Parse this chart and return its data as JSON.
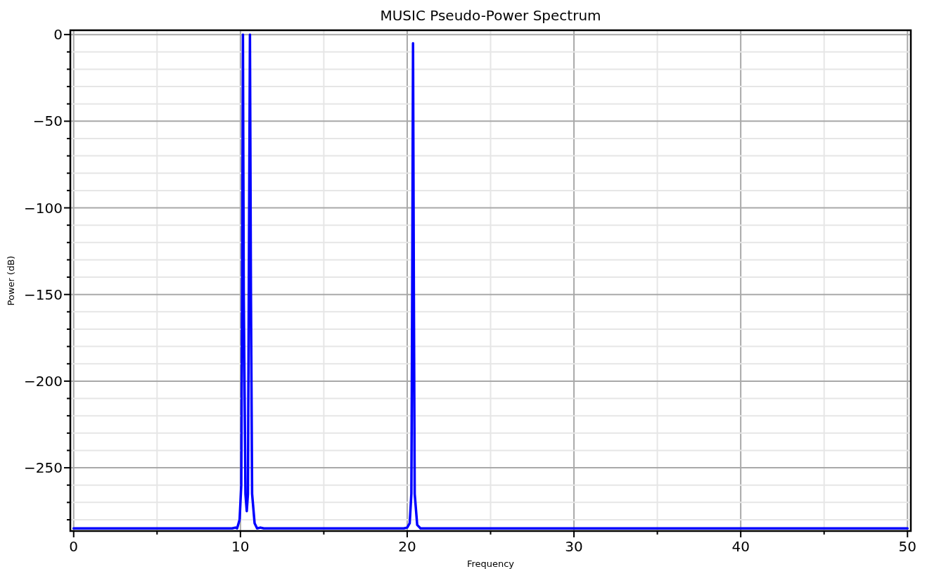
{
  "chart_data": {
    "type": "line",
    "title": "MUSIC Pseudo-Power Spectrum",
    "xlabel": "Frequency",
    "ylabel": "Power (dB)",
    "x": [
      0,
      9.5,
      9.7,
      9.8,
      9.95,
      10.05,
      10.1,
      10.15,
      10.2,
      10.3,
      10.38,
      10.45,
      10.5,
      10.57,
      10.63,
      10.7,
      10.85,
      11.0,
      11.2,
      11.4,
      19.8,
      20.0,
      20.15,
      20.25,
      20.3,
      20.35,
      20.4,
      20.45,
      20.6,
      20.8,
      50
    ],
    "series": [
      {
        "color": "#0000ff",
        "values": [
          -285,
          -285,
          -284.5,
          -285,
          -280,
          -260,
          -150,
          0,
          -150,
          -265,
          -275,
          -265,
          -150,
          0,
          -150,
          -265,
          -282,
          -285,
          -284.5,
          -285,
          -285,
          -284.5,
          -282,
          -265,
          -150,
          -5,
          -150,
          -265,
          -283,
          -285,
          -285
        ]
      }
    ],
    "xlim": [
      -0.2,
      50.2
    ],
    "ylim": [
      -286.5,
      2.5
    ],
    "xticks": [
      0,
      {
        "value": 5,
        "label": null
      },
      10,
      {
        "value": 15,
        "label": null
      },
      20,
      {
        "value": 25,
        "label": null
      },
      30,
      {
        "value": 35,
        "label": null
      },
      40,
      {
        "value": 45,
        "label": null
      },
      50
    ],
    "yticks": [
      {
        "value": -280,
        "label": null
      },
      {
        "value": -270,
        "label": null
      },
      {
        "value": -260,
        "label": null
      },
      {
        "value": -250,
        "label": "−250"
      },
      {
        "value": -240,
        "label": null
      },
      {
        "value": -230,
        "label": null
      },
      {
        "value": -220,
        "label": null
      },
      {
        "value": -210,
        "label": null
      },
      {
        "value": -200,
        "label": "−200"
      },
      {
        "value": -190,
        "label": null
      },
      {
        "value": -180,
        "label": null
      },
      {
        "value": -170,
        "label": null
      },
      {
        "value": -160,
        "label": null
      },
      {
        "value": -150,
        "label": "−150"
      },
      {
        "value": -140,
        "label": null
      },
      {
        "value": -130,
        "label": null
      },
      {
        "value": -120,
        "label": null
      },
      {
        "value": -110,
        "label": null
      },
      {
        "value": -100,
        "label": "−100"
      },
      {
        "value": -90,
        "label": null
      },
      {
        "value": -80,
        "label": null
      },
      {
        "value": -70,
        "label": null
      },
      {
        "value": -60,
        "label": null
      },
      {
        "value": -50,
        "label": "−50"
      },
      {
        "value": -40,
        "label": null
      },
      {
        "value": -30,
        "label": null
      },
      {
        "value": -20,
        "label": null
      },
      {
        "value": -10,
        "label": null
      },
      0
    ],
    "grid": true,
    "marker": "none",
    "line_style": "solid"
  }
}
